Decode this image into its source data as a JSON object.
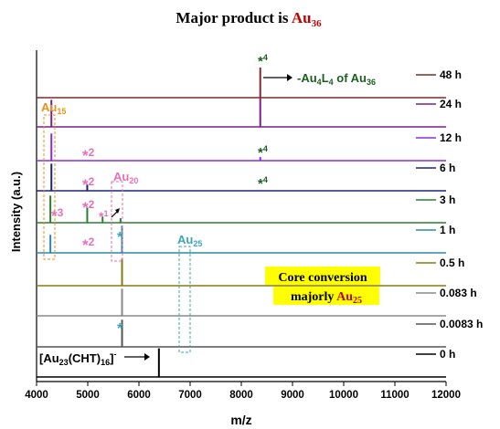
{
  "title": {
    "prefix": "Major product is ",
    "element": "Au",
    "sub": "36"
  },
  "chart_data": {
    "type": "line",
    "xlabel": "m/z",
    "ylabel": "Intensity (a.u.)",
    "xlim": [
      4000,
      12000
    ],
    "x_ticks": [
      4000,
      5000,
      6000,
      7000,
      8000,
      9000,
      10000,
      11000,
      12000
    ],
    "series": [
      {
        "name": "48 h",
        "color": "#7b2c2c",
        "peaks": [
          {
            "x": 8370,
            "h": 1.0
          }
        ]
      },
      {
        "name": "24 h",
        "color": "#7a1f8c",
        "peaks": [
          {
            "x": 4290,
            "h": 0.9
          },
          {
            "x": 8370,
            "h": 0.95
          }
        ]
      },
      {
        "name": "12 h",
        "color": "#8a2be2",
        "peaks": [
          {
            "x": 4290,
            "h": 0.9
          },
          {
            "x": 8370,
            "h": 0.12
          }
        ]
      },
      {
        "name": "6 h",
        "color": "#1a237e",
        "peaks": [
          {
            "x": 4290,
            "h": 0.9
          },
          {
            "x": 4990,
            "h": 0.2
          }
        ]
      },
      {
        "name": "3 h",
        "color": "#2e7d32",
        "peaks": [
          {
            "x": 4270,
            "h": 0.9
          },
          {
            "x": 4990,
            "h": 0.5
          },
          {
            "x": 5290,
            "h": 0.2
          },
          {
            "x": 5640,
            "h": 0.15
          }
        ]
      },
      {
        "name": "1 h",
        "color": "#2a8aa8",
        "peaks": [
          {
            "x": 4270,
            "h": 0.6
          },
          {
            "x": 5670,
            "h": 0.9
          }
        ]
      },
      {
        "name": "0.5 h",
        "color": "#8a7a10",
        "peaks": [
          {
            "x": 5670,
            "h": 0.9
          }
        ]
      },
      {
        "name": "0.083 h",
        "color": "#888888",
        "peaks": [
          {
            "x": 5670,
            "h": 0.9
          }
        ]
      },
      {
        "name": "0.0083 h",
        "color": "#555555",
        "peaks": [
          {
            "x": 5670,
            "h": 0.9
          }
        ]
      },
      {
        "name": "0 h",
        "color": "#000000",
        "peaks": [
          {
            "x": 6390,
            "h": 0.95
          }
        ]
      }
    ]
  },
  "annotations": {
    "au15": {
      "el": "Au",
      "sub": "15"
    },
    "au20": {
      "el": "Au",
      "sub": "20"
    },
    "au25": {
      "el": "Au",
      "sub": "25"
    },
    "loss": {
      "a": "-Au",
      "b": "4",
      "c": "L",
      "d": "4",
      "e": " of Au",
      "f": "36"
    },
    "star4_top": {
      "star": "*",
      "num": "4"
    },
    "star4_mid": {
      "star": "*",
      "num": "4"
    },
    "star4_low": {
      "star": "*",
      "num": "4"
    },
    "star2_a": {
      "star": "*",
      "num": "2"
    },
    "star2_b": {
      "star": "*",
      "num": "2"
    },
    "star2_c": {
      "star": "*",
      "num": "2"
    },
    "star2_d": {
      "star": "*",
      "num": "2"
    },
    "star3": {
      "star": "*",
      "num": "3"
    },
    "star1": {
      "star": "*",
      "num": "1"
    },
    "bluestar_a": "*",
    "bluestar_b": "*",
    "core_line1": "Core conversion",
    "core_line2_a": "majorly ",
    "core_line2_b": "Au",
    "core_line2_c": "25",
    "au23": {
      "a": "[Au",
      "b": "23",
      "c": "(CHT)",
      "d": "16",
      "e": "]",
      "f": "-"
    }
  },
  "colors": {
    "pink": "#e86fb8",
    "orange": "#e8901a",
    "teal": "#3aa6b9",
    "darkgreen": "#1b5e20",
    "title_red": "#c00000",
    "highlight": "#ffff00"
  }
}
